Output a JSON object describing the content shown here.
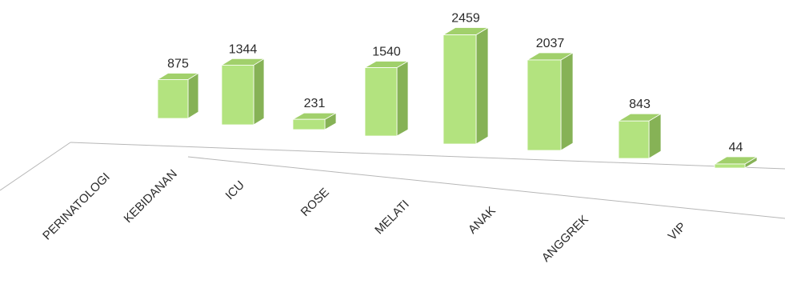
{
  "chart_data": {
    "type": "bar",
    "style": "3d-perspective-columns",
    "categories": [
      "PERINATOLOGI",
      "KEBIDANAN",
      "ICU",
      "ROSE",
      "MELATI",
      "ANAK",
      "ANGGREK",
      "VIP"
    ],
    "values": [
      875,
      1344,
      231,
      1540,
      2459,
      2037,
      843,
      44
    ],
    "value_labels": [
      "875",
      "1344",
      "231",
      "1540",
      "2459",
      "2037",
      "843",
      "44"
    ],
    "title": "",
    "xlabel": "",
    "ylabel": "",
    "ylim": [
      0,
      2500
    ],
    "grid": false,
    "legend": "none",
    "colors": {
      "bar_front": "#b3e37f",
      "bar_side": "#86b256",
      "bar_top": "#a1d06b",
      "floor_line": "#b7b7b7",
      "text": "#2b2b2b"
    }
  }
}
